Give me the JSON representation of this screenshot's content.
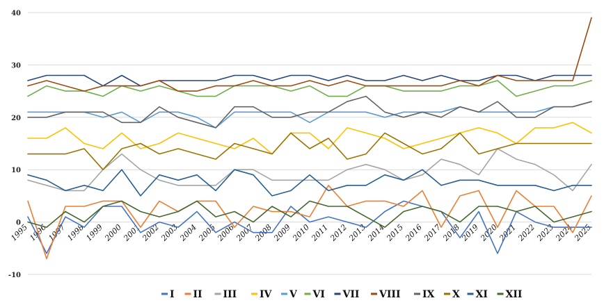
{
  "chart_data": {
    "type": "line",
    "title": "",
    "xlabel": "",
    "ylabel": "",
    "ylim": [
      -10,
      40
    ],
    "yticks": [
      "-10",
      "0",
      "10",
      "20",
      "30",
      "40"
    ],
    "grid": true,
    "legend_position": "bottom",
    "x": [
      "1995",
      "1996",
      "1997",
      "1998",
      "1999",
      "2000",
      "2001",
      "2002",
      "2003",
      "2004",
      "2005",
      "2006",
      "2007",
      "2008",
      "2009",
      "2010",
      "2011",
      "2012",
      "2013",
      "2014",
      "2015",
      "2016",
      "2017",
      "2018",
      "2019",
      "2020",
      "2021",
      "2022",
      "2023",
      "2024",
      "2025"
    ],
    "series": [
      {
        "name": "I",
        "color": "#4472c4",
        "values": [
          1,
          -6,
          1,
          -1,
          3,
          3,
          -2,
          0,
          -1,
          2,
          -2,
          0,
          -2,
          -2,
          3,
          0,
          1,
          0,
          -1,
          2,
          4,
          3,
          2,
          -3,
          2,
          -6,
          2,
          0,
          -1,
          -1,
          -1
        ]
      },
      {
        "name": "II",
        "color": "#ed7d31",
        "values": [
          4,
          -7,
          3,
          3,
          4,
          4,
          -1,
          4,
          2,
          4,
          4,
          -1,
          3,
          2,
          2,
          1,
          7,
          3,
          4,
          4,
          3,
          6,
          -1,
          5,
          6,
          -1,
          6,
          3,
          3,
          -2,
          5
        ]
      },
      {
        "name": "III",
        "color": "#a5a5a5",
        "values": [
          8,
          7,
          6,
          6,
          10,
          13,
          10,
          8,
          7,
          7,
          7,
          10,
          10,
          8,
          8,
          8,
          8,
          10,
          11,
          10,
          8,
          9,
          12,
          11,
          9,
          14,
          12,
          11,
          9,
          6,
          11
        ]
      },
      {
        "name": "IV",
        "color": "#ffc000",
        "values": [
          16,
          16,
          18,
          15,
          14,
          17,
          14,
          15,
          17,
          16,
          15,
          14,
          16,
          13,
          17,
          17,
          14,
          18,
          17,
          16,
          14,
          15,
          16,
          17,
          18,
          17,
          15,
          18,
          18,
          19,
          17
        ]
      },
      {
        "name": "V",
        "color": "#5b9bd5",
        "values": [
          21,
          21,
          21,
          21,
          20,
          21,
          19,
          21,
          21,
          20,
          18,
          21,
          21,
          21,
          21,
          19,
          21,
          21,
          21,
          20,
          21,
          21,
          21,
          22,
          21,
          21,
          21,
          21,
          22,
          22,
          23
        ]
      },
      {
        "name": "VI",
        "color": "#70ad47",
        "values": [
          24,
          26,
          25,
          25,
          24,
          26,
          25,
          26,
          25,
          24,
          24,
          26,
          26,
          26,
          25,
          26,
          24,
          24,
          26,
          26,
          25,
          25,
          25,
          26,
          26,
          27,
          24,
          25,
          26,
          26,
          27
        ]
      },
      {
        "name": "VII",
        "color": "#264478",
        "values": [
          27,
          28,
          28,
          28,
          26,
          28,
          26,
          27,
          27,
          27,
          27,
          28,
          28,
          27,
          28,
          28,
          27,
          28,
          27,
          27,
          28,
          27,
          28,
          27,
          27,
          28,
          28,
          27,
          28,
          28,
          28
        ]
      },
      {
        "name": "VIII",
        "color": "#9e480e",
        "values": [
          26,
          27,
          26,
          25,
          26,
          26,
          26,
          27,
          25,
          25,
          26,
          26,
          27,
          26,
          26,
          27,
          26,
          27,
          26,
          26,
          26,
          26,
          26,
          27,
          26,
          28,
          27,
          27,
          27,
          27,
          39
        ]
      },
      {
        "name": "IX",
        "color": "#636363",
        "values": [
          20,
          20,
          21,
          21,
          21,
          19,
          19,
          22,
          20,
          19,
          18,
          22,
          22,
          20,
          20,
          21,
          21,
          23,
          24,
          21,
          20,
          21,
          20,
          22,
          21,
          23,
          20,
          20,
          22,
          22,
          23
        ]
      },
      {
        "name": "X",
        "color": "#997300",
        "values": [
          13,
          13,
          13,
          14,
          10,
          14,
          15,
          13,
          14,
          13,
          12,
          15,
          14,
          13,
          17,
          14,
          16,
          12,
          13,
          17,
          15,
          13,
          14,
          17,
          13,
          14,
          15,
          15,
          15,
          15,
          15
        ]
      },
      {
        "name": "XI",
        "color": "#255e91",
        "values": [
          9,
          8,
          6,
          7,
          6,
          10,
          5,
          9,
          8,
          9,
          6,
          10,
          9,
          5,
          6,
          9,
          6,
          7,
          7,
          9,
          8,
          10,
          7,
          8,
          8,
          7,
          7,
          7,
          6,
          7,
          7
        ]
      },
      {
        "name": "XII",
        "color": "#43682b",
        "values": [
          0,
          -1,
          2,
          0,
          3,
          4,
          2,
          1,
          2,
          4,
          1,
          2,
          0,
          3,
          1,
          4,
          3,
          3,
          1,
          -1,
          2,
          3,
          2,
          0,
          3,
          3,
          2,
          3,
          0,
          1,
          2
        ]
      }
    ]
  }
}
